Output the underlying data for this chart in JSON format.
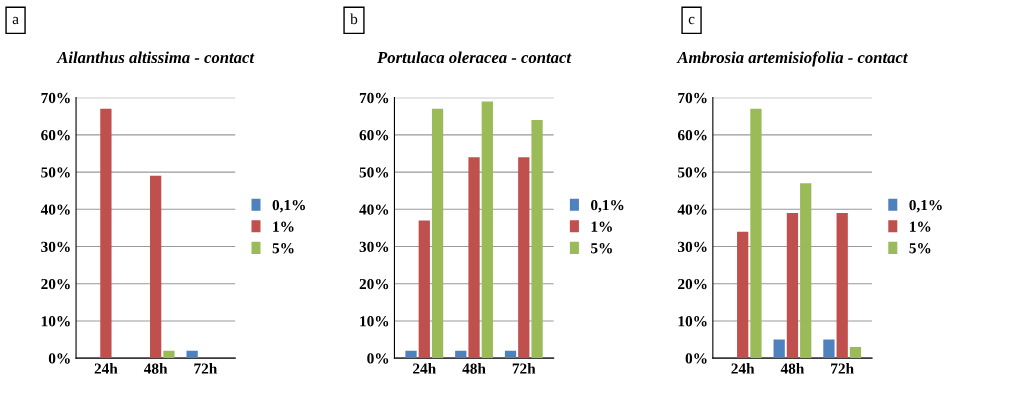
{
  "chart_data": [
    {
      "type": "bar",
      "title": "Ailanthus altissima - contact",
      "annotations": [
        "a"
      ],
      "categories": [
        "24h",
        "48h",
        "72h"
      ],
      "legend": "right",
      "ylim": [
        0,
        70
      ],
      "yticks": [
        {
          "value": 0,
          "label": "0%"
        },
        {
          "value": 10,
          "label": "10%"
        },
        {
          "value": 20,
          "label": "20%"
        },
        {
          "value": 30,
          "label": "30%"
        },
        {
          "value": 40,
          "label": "40%"
        },
        {
          "value": 50,
          "label": "50%"
        },
        {
          "value": 60,
          "label": "60%"
        },
        {
          "value": 70,
          "label": "70%"
        }
      ],
      "grid": "y",
      "series": [
        {
          "name": "0,1%",
          "color": "#4f81bd",
          "values": [
            0,
            0,
            2
          ]
        },
        {
          "name": "1%",
          "color": "#c0504d",
          "values": [
            67,
            49,
            0
          ]
        },
        {
          "name": "5%",
          "color": "#9bbb59",
          "values": [
            0,
            2,
            0
          ]
        }
      ]
    },
    {
      "type": "bar",
      "title": "Portulaca oleracea - contact",
      "annotations": [
        "b"
      ],
      "categories": [
        "24h",
        "48h",
        "72h"
      ],
      "legend": "right",
      "ylim": [
        0,
        70
      ],
      "yticks": [
        {
          "value": 0,
          "label": "0%"
        },
        {
          "value": 10,
          "label": "10%"
        },
        {
          "value": 20,
          "label": "20%"
        },
        {
          "value": 30,
          "label": "30%"
        },
        {
          "value": 40,
          "label": "40%"
        },
        {
          "value": 50,
          "label": "50%"
        },
        {
          "value": 60,
          "label": "60%"
        },
        {
          "value": 70,
          "label": "70%"
        }
      ],
      "grid": "y",
      "series": [
        {
          "name": "0,1%",
          "color": "#4f81bd",
          "values": [
            2,
            2,
            2
          ]
        },
        {
          "name": "1%",
          "color": "#c0504d",
          "values": [
            37,
            54,
            54
          ]
        },
        {
          "name": "5%",
          "color": "#9bbb59",
          "values": [
            67,
            69,
            64
          ]
        }
      ]
    },
    {
      "type": "bar",
      "title": "Ambrosia artemisiofolia - contact",
      "annotations": [
        "c"
      ],
      "categories": [
        "24h",
        "48h",
        "72h"
      ],
      "legend": "right",
      "ylim": [
        0,
        70
      ],
      "yticks": [
        {
          "value": 0,
          "label": "0%"
        },
        {
          "value": 10,
          "label": "10%"
        },
        {
          "value": 20,
          "label": "20%"
        },
        {
          "value": 30,
          "label": "30%"
        },
        {
          "value": 40,
          "label": "40%"
        },
        {
          "value": 50,
          "label": "50%"
        },
        {
          "value": 60,
          "label": "60%"
        },
        {
          "value": 70,
          "label": "70%"
        }
      ],
      "grid": "y",
      "series": [
        {
          "name": "0,1%",
          "color": "#4f81bd",
          "values": [
            0,
            5,
            5
          ]
        },
        {
          "name": "1%",
          "color": "#c0504d",
          "values": [
            34,
            39,
            39
          ]
        },
        {
          "name": "5%",
          "color": "#9bbb59",
          "values": [
            67,
            47,
            3
          ]
        }
      ]
    }
  ]
}
